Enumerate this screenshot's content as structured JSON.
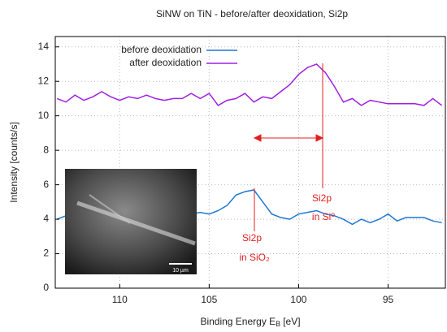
{
  "chart_data": {
    "type": "line",
    "title": "SiNW on TiN - before/after deoxidation, Si2p",
    "xlabel": "Binding Energy E",
    "xlabel_sub": "B",
    "xlabel_unit": "[eV]",
    "ylabel": "Intensity [counts/s]",
    "x": [
      113.5,
      113,
      112.5,
      112,
      111.5,
      111,
      110.5,
      110,
      109.5,
      109,
      108.5,
      108,
      107.5,
      107,
      106.5,
      106,
      105.5,
      105,
      104.5,
      104,
      103.5,
      103,
      102.5,
      102,
      101.5,
      101,
      100.5,
      100,
      99.5,
      99,
      98.5,
      98,
      97.5,
      97,
      96.5,
      96,
      95.5,
      95,
      94.5,
      94,
      93.5,
      93,
      92.5,
      92
    ],
    "series": [
      {
        "name": "before deoxidation",
        "color": "#1f77d4",
        "values": [
          4.0,
          4.2,
          4.1,
          4.2,
          4.2,
          4.3,
          4.2,
          4.2,
          4.3,
          4.2,
          4.2,
          4.3,
          4.2,
          4.3,
          4.2,
          4.3,
          4.4,
          4.3,
          4.5,
          4.8,
          5.4,
          5.6,
          5.7,
          5.0,
          4.3,
          4.1,
          4.0,
          4.3,
          4.4,
          4.5,
          4.3,
          4.2,
          4.0,
          3.7,
          4.0,
          3.8,
          4.0,
          4.3,
          3.9,
          4.1,
          4.1,
          4.1,
          3.9,
          3.8
        ]
      },
      {
        "name": "after deoxidation",
        "color": "#a020e0",
        "values": [
          11.0,
          10.8,
          11.2,
          10.9,
          11.1,
          11.4,
          11.1,
          10.9,
          11.1,
          11.0,
          11.2,
          11.0,
          10.9,
          11.0,
          11.0,
          11.3,
          11.0,
          11.3,
          10.6,
          10.9,
          11.0,
          11.3,
          10.8,
          11.1,
          11.0,
          11.4,
          11.8,
          12.4,
          12.8,
          13.0,
          12.5,
          11.7,
          10.8,
          11.0,
          10.6,
          10.9,
          10.8,
          10.7,
          10.7,
          10.7,
          10.7,
          10.6,
          11.0,
          10.6
        ]
      }
    ],
    "xlim": [
      113.6,
      91.8
    ],
    "xticks": [
      110,
      105,
      100,
      95
    ],
    "ylim": [
      0,
      14.6
    ],
    "yticks": [
      0,
      2,
      4,
      6,
      8,
      10,
      12,
      14
    ],
    "grid": true,
    "legend": "top-left",
    "annotations": {
      "sio2_line1": "Si2p",
      "sio2_line2": "in SiO₂",
      "si_line1": "Si2p",
      "si_line2": "in Si⁰"
    },
    "inset_scale": "10 µm"
  }
}
